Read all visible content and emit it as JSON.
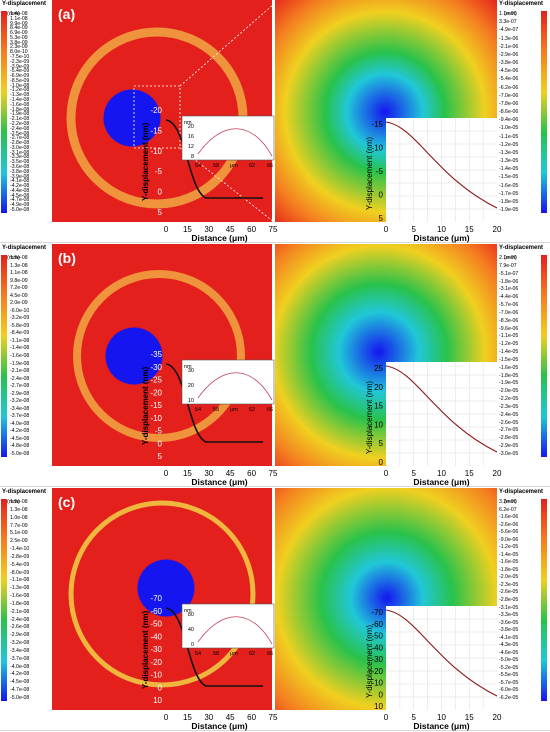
{
  "legend_title": "Y-displacement",
  "legend_unit": "(mm)",
  "axis_x_icon": "axis-triad-icon",
  "colors": {
    "red": "#e4201c",
    "orange": "#f47c20",
    "yellow": "#f0d020",
    "green": "#29c24b",
    "cyan": "#21c7d8",
    "blue": "#1515f0"
  },
  "rows": [
    {
      "label": "(a)",
      "left_legend": [
        "1.4e-08",
        "1.1e-08",
        "9.9e-09",
        "8.4e-09",
        "6.9e-09",
        "5.3e-09",
        "3.8e-09",
        "2.3e-09",
        "8.0e-10",
        "-7.5e-10",
        "-2.3e-09",
        "-3.9e-09",
        "-5.4e-09",
        "-6.9e-09",
        "-8.5e-09",
        "-1.0e-08",
        "-1.2e-08",
        "-1.3e-08",
        "-1.4e-08",
        "-1.6e-08",
        "-1.8e-08",
        "-1.9e-08",
        "-2.1e-08",
        "-2.2e-08",
        "-2.4e-08",
        "-2.5e-08",
        "-2.7e-08",
        "-2.8e-08",
        "-3.0e-08",
        "-3.1e-08",
        "-3.3e-08",
        "-3.5e-08",
        "-3.6e-08",
        "-3.8e-08",
        "-3.9e-08",
        "-4.1e-08",
        "-4.2e-08",
        "-4.4e-08",
        "-4.5e-08",
        "-4.7e-08",
        "-4.9e-08",
        "-5.0e-08"
      ],
      "right_legend": [
        "1.1e-06",
        "3.3e-07",
        "-4.9e-07",
        "-1.3e-06",
        "-2.1e-06",
        "-2.9e-06",
        "-3.8e-06",
        "-4.5e-06",
        "-5.4e-06",
        "-6.2e-06",
        "-7.0e-06",
        "-7.8e-06",
        "-8.6e-06",
        "-9.4e-06",
        "-1.0e-05",
        "-1.1e-05",
        "-1.2e-05",
        "-1.3e-05",
        "-1.3e-05",
        "-1.4e-05",
        "-1.5e-05",
        "-1.6e-05",
        "-1.7e-05",
        "-1.8e-05",
        "-1.9e-05"
      ],
      "left_y_label": "Y-displacement (nm)",
      "left_y_ticks": [
        "-20",
        "-15",
        "-10",
        "-5",
        "0",
        "5"
      ],
      "left_x_ticks": [
        "0",
        "15",
        "30",
        "45",
        "60",
        "75"
      ],
      "x_label": "Distance (μm)",
      "inset_y_ticks": [
        "20",
        "16",
        "12",
        "8"
      ],
      "inset_x_ticks": [
        "54",
        "58",
        "μm",
        "62",
        "66"
      ],
      "inset_unit": "nm",
      "right_y_label": "Y-displacement (nm)",
      "right_y_ticks": [
        "-15",
        "-10",
        "-5",
        "0",
        "5"
      ],
      "right_x_ticks": [
        "0",
        "5",
        "10",
        "15",
        "20"
      ],
      "right_x_label": "Distance (μm)"
    },
    {
      "label": "(b)",
      "left_legend": [
        "1.5e-08",
        "1.3e-08",
        "1.1e-08",
        "9.8e-09",
        "7.2e-09",
        "4.5e-09",
        "2.0e-09",
        "-6.0e-10",
        "-3.2e-09",
        "-5.8e-09",
        "-8.4e-09",
        "-1.1e-08",
        "-1.4e-08",
        "-1.6e-08",
        "-1.9e-08",
        "-2.1e-08",
        "-2.4e-08",
        "-2.7e-08",
        "-2.9e-08",
        "-3.2e-08",
        "-3.4e-08",
        "-3.7e-08",
        "-4.0e-08",
        "-4.2e-08",
        "-4.5e-08",
        "-4.8e-08",
        "-5.0e-08"
      ],
      "right_legend": [
        "2.1e-06",
        "7.9e-07",
        "-5.1e-07",
        "-1.8e-06",
        "-3.1e-06",
        "-4.4e-06",
        "-5.7e-06",
        "-7.0e-06",
        "-8.3e-06",
        "-9.6e-06",
        "-1.1e-05",
        "-1.2e-05",
        "-1.4e-05",
        "-1.5e-05",
        "-1.6e-05",
        "-1.8e-05",
        "-1.9e-05",
        "-2.0e-05",
        "-2.2e-05",
        "-2.3e-05",
        "-2.4e-05",
        "-2.6e-05",
        "-2.7e-05",
        "-2.8e-05",
        "-2.9e-05",
        "-3.0e-05"
      ],
      "left_y_label": "Y-displacement (nm)",
      "left_y_ticks": [
        "-35",
        "-30",
        "-25",
        "-20",
        "-15",
        "-10",
        "-5",
        "0",
        "5"
      ],
      "left_x_ticks": [
        "0",
        "15",
        "30",
        "45",
        "60",
        "75"
      ],
      "x_label": "Distance (μm)",
      "inset_y_ticks": [
        "30",
        "20",
        "10"
      ],
      "inset_x_ticks": [
        "54",
        "58",
        "μm",
        "62",
        "66"
      ],
      "inset_unit": "nm",
      "right_y_label": "Y-displacement (nm)",
      "right_y_ticks": [
        "25",
        "20",
        "15",
        "10",
        "5",
        "0"
      ],
      "right_x_ticks": [
        "0",
        "5",
        "10",
        "15",
        "20"
      ],
      "right_x_label": "Distance (μm)"
    },
    {
      "label": "(c)",
      "left_legend": [
        "1.5e-08",
        "1.3e-08",
        "1.0e-08",
        "7.7e-09",
        "5.1e-09",
        "2.5e-09",
        "-1.4e-10",
        "-2.8e-09",
        "-5.4e-09",
        "-8.0e-09",
        "-1.1e-08",
        "-1.3e-08",
        "-1.6e-08",
        "-1.8e-08",
        "-2.1e-08",
        "-2.4e-08",
        "-2.6e-08",
        "-2.9e-08",
        "-3.2e-08",
        "-3.4e-08",
        "-3.7e-08",
        "-4.0e-08",
        "-4.2e-08",
        "-4.5e-08",
        "-4.7e-08",
        "-5.0e-08"
      ],
      "right_legend": [
        "3.2e-06",
        "6.2e-07",
        "-1.6e-06",
        "-2.6e-06",
        "-5.6e-06",
        "-9.0e-06",
        "-1.2e-05",
        "-1.4e-05",
        "-1.6e-05",
        "-1.8e-05",
        "-2.0e-05",
        "-2.3e-05",
        "-2.6e-05",
        "-2.8e-05",
        "-3.1e-05",
        "-3.3e-05",
        "-3.6e-05",
        "-3.8e-05",
        "-4.1e-05",
        "-4.3e-05",
        "-4.6e-05",
        "-5.0e-05",
        "-5.2e-05",
        "-5.5e-05",
        "-5.7e-05",
        "-6.0e-05",
        "-6.2e-05"
      ],
      "left_y_label": "Y-displacement (nm)",
      "left_y_ticks": [
        "-70",
        "-60",
        "-50",
        "-40",
        "-30",
        "-20",
        "-10",
        "0",
        "10"
      ],
      "left_x_ticks": [
        "0",
        "15",
        "30",
        "45",
        "60",
        "75"
      ],
      "x_label": "Distance (μm)",
      "inset_y_ticks": [
        "80",
        "40",
        "0"
      ],
      "inset_x_ticks": [
        "54",
        "58",
        "μm",
        "62",
        "66"
      ],
      "inset_unit": "nm",
      "right_y_label": "Y-displacement (nm)",
      "right_y_ticks": [
        "-70",
        "-60",
        "-50",
        "-40",
        "-30",
        "-20",
        "-10",
        "0",
        "10"
      ],
      "right_x_ticks": [
        "0",
        "5",
        "10",
        "15",
        "20"
      ],
      "right_x_label": "Distance (μm)"
    }
  ]
}
